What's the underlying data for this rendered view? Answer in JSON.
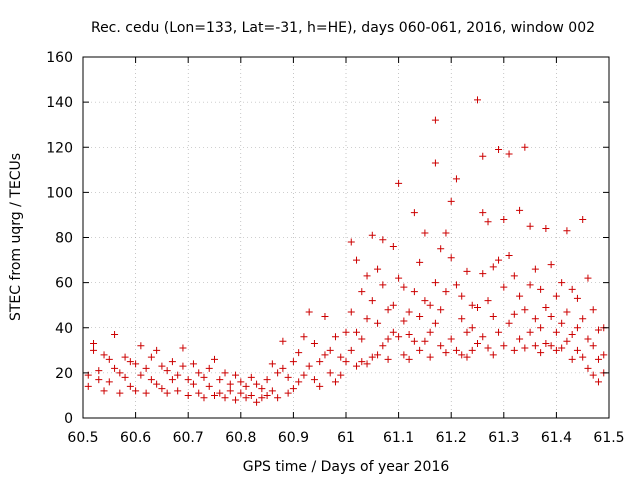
{
  "chart_data": {
    "type": "scatter",
    "title": "Rec. cedu (Lon=133, Lat=-31, h=HE), days 060-061, 2016, window 002",
    "xlabel": "GPS time / Days of year 2016",
    "ylabel": "STEC from uqrg / TECUs",
    "xlim": [
      60.5,
      61.5
    ],
    "ylim": [
      0,
      160
    ],
    "xticks": [
      60.5,
      60.6,
      60.7,
      60.8,
      60.9,
      61,
      61.1,
      61.2,
      61.3,
      61.4,
      61.5
    ],
    "xtick_labels": [
      "60.5",
      "60.6",
      "60.7",
      "60.8",
      "60.9",
      "61",
      "61.1",
      "61.2",
      "61.3",
      "61.4",
      "61.5"
    ],
    "yticks": [
      0,
      20,
      40,
      60,
      80,
      100,
      120,
      140,
      160
    ],
    "ytick_labels": [
      "0",
      "20",
      "40",
      "60",
      "80",
      "100",
      "120",
      "140",
      "160"
    ],
    "grid": true,
    "marker": "+",
    "color": "#cc0000",
    "series": [
      {
        "name": "STEC",
        "points": [
          [
            60.51,
            19
          ],
          [
            60.51,
            14
          ],
          [
            60.52,
            33
          ],
          [
            60.52,
            30
          ],
          [
            60.53,
            21
          ],
          [
            60.53,
            17
          ],
          [
            60.54,
            28
          ],
          [
            60.54,
            12
          ],
          [
            60.55,
            26
          ],
          [
            60.55,
            16
          ],
          [
            60.56,
            37
          ],
          [
            60.56,
            22
          ],
          [
            60.57,
            20
          ],
          [
            60.57,
            11
          ],
          [
            60.58,
            27
          ],
          [
            60.58,
            18
          ],
          [
            60.59,
            25
          ],
          [
            60.59,
            14
          ],
          [
            60.6,
            24
          ],
          [
            60.6,
            12
          ],
          [
            60.61,
            32
          ],
          [
            60.61,
            19
          ],
          [
            60.62,
            22
          ],
          [
            60.62,
            11
          ],
          [
            60.63,
            27
          ],
          [
            60.63,
            17
          ],
          [
            60.64,
            30
          ],
          [
            60.64,
            15
          ],
          [
            60.65,
            23
          ],
          [
            60.65,
            13
          ],
          [
            60.66,
            21
          ],
          [
            60.66,
            11
          ],
          [
            60.67,
            25
          ],
          [
            60.67,
            17
          ],
          [
            60.68,
            19
          ],
          [
            60.68,
            12
          ],
          [
            60.69,
            31
          ],
          [
            60.69,
            23
          ],
          [
            60.7,
            17
          ],
          [
            60.7,
            10
          ],
          [
            60.71,
            24
          ],
          [
            60.71,
            15
          ],
          [
            60.72,
            20
          ],
          [
            60.72,
            11
          ],
          [
            60.73,
            18
          ],
          [
            60.73,
            9
          ],
          [
            60.74,
            22
          ],
          [
            60.74,
            14
          ],
          [
            60.75,
            26
          ],
          [
            60.75,
            10
          ],
          [
            60.76,
            17
          ],
          [
            60.76,
            11
          ],
          [
            60.77,
            20
          ],
          [
            60.77,
            9
          ],
          [
            60.78,
            15
          ],
          [
            60.78,
            12
          ],
          [
            60.79,
            19
          ],
          [
            60.79,
            8
          ],
          [
            60.8,
            16
          ],
          [
            60.8,
            11
          ],
          [
            60.81,
            14
          ],
          [
            60.81,
            9
          ],
          [
            60.82,
            18
          ],
          [
            60.82,
            10
          ],
          [
            60.83,
            15
          ],
          [
            60.83,
            7
          ],
          [
            60.84,
            13
          ],
          [
            60.84,
            9
          ],
          [
            60.85,
            17
          ],
          [
            60.85,
            10
          ],
          [
            60.86,
            24
          ],
          [
            60.86,
            12
          ],
          [
            60.87,
            20
          ],
          [
            60.87,
            9
          ],
          [
            60.88,
            34
          ],
          [
            60.88,
            22
          ],
          [
            60.89,
            18
          ],
          [
            60.89,
            11
          ],
          [
            60.9,
            25
          ],
          [
            60.9,
            13
          ],
          [
            60.91,
            29
          ],
          [
            60.91,
            16
          ],
          [
            60.92,
            36
          ],
          [
            60.92,
            19
          ],
          [
            60.93,
            47
          ],
          [
            60.93,
            23
          ],
          [
            60.94,
            33
          ],
          [
            60.94,
            17
          ],
          [
            60.95,
            25
          ],
          [
            60.95,
            14
          ],
          [
            60.96,
            45
          ],
          [
            60.96,
            28
          ],
          [
            60.97,
            30
          ],
          [
            60.97,
            20
          ],
          [
            60.98,
            36
          ],
          [
            60.98,
            16
          ],
          [
            60.99,
            27
          ],
          [
            60.99,
            19
          ],
          [
            61.0,
            38
          ],
          [
            61.0,
            25
          ],
          [
            61.01,
            78
          ],
          [
            61.01,
            47
          ],
          [
            61.01,
            30
          ],
          [
            61.02,
            70
          ],
          [
            61.02,
            38
          ],
          [
            61.02,
            23
          ],
          [
            61.03,
            56
          ],
          [
            61.03,
            35
          ],
          [
            61.03,
            25
          ],
          [
            61.04,
            63
          ],
          [
            61.04,
            44
          ],
          [
            61.04,
            24
          ],
          [
            61.05,
            81
          ],
          [
            61.05,
            52
          ],
          [
            61.05,
            27
          ],
          [
            61.06,
            66
          ],
          [
            61.06,
            42
          ],
          [
            61.06,
            28
          ],
          [
            61.07,
            79
          ],
          [
            61.07,
            59
          ],
          [
            61.07,
            32
          ],
          [
            61.08,
            48
          ],
          [
            61.08,
            35
          ],
          [
            61.08,
            26
          ],
          [
            61.09,
            76
          ],
          [
            61.09,
            50
          ],
          [
            61.09,
            38
          ],
          [
            61.1,
            104
          ],
          [
            61.1,
            62
          ],
          [
            61.1,
            36
          ],
          [
            61.11,
            58
          ],
          [
            61.11,
            43
          ],
          [
            61.11,
            28
          ],
          [
            61.12,
            47
          ],
          [
            61.12,
            37
          ],
          [
            61.12,
            26
          ],
          [
            61.13,
            91
          ],
          [
            61.13,
            56
          ],
          [
            61.13,
            34
          ],
          [
            61.14,
            69
          ],
          [
            61.14,
            45
          ],
          [
            61.14,
            30
          ],
          [
            61.15,
            82
          ],
          [
            61.15,
            52
          ],
          [
            61.15,
            34
          ],
          [
            61.16,
            50
          ],
          [
            61.16,
            38
          ],
          [
            61.16,
            27
          ],
          [
            61.17,
            132
          ],
          [
            61.17,
            113
          ],
          [
            61.17,
            60
          ],
          [
            61.17,
            42
          ],
          [
            61.18,
            75
          ],
          [
            61.18,
            48
          ],
          [
            61.18,
            32
          ],
          [
            61.19,
            82
          ],
          [
            61.19,
            56
          ],
          [
            61.19,
            29
          ],
          [
            61.2,
            96
          ],
          [
            61.2,
            71
          ],
          [
            61.2,
            35
          ],
          [
            61.21,
            106
          ],
          [
            61.21,
            59
          ],
          [
            61.21,
            30
          ],
          [
            61.22,
            54
          ],
          [
            61.22,
            44
          ],
          [
            61.22,
            28
          ],
          [
            61.23,
            65
          ],
          [
            61.23,
            38
          ],
          [
            61.23,
            27
          ],
          [
            61.24,
            50
          ],
          [
            61.24,
            40
          ],
          [
            61.24,
            30
          ],
          [
            61.25,
            141
          ],
          [
            61.25,
            49
          ],
          [
            61.25,
            33
          ],
          [
            61.26,
            116
          ],
          [
            61.26,
            91
          ],
          [
            61.26,
            64
          ],
          [
            61.26,
            36
          ],
          [
            61.27,
            87
          ],
          [
            61.27,
            52
          ],
          [
            61.27,
            31
          ],
          [
            61.28,
            67
          ],
          [
            61.28,
            45
          ],
          [
            61.28,
            28
          ],
          [
            61.29,
            119
          ],
          [
            61.29,
            70
          ],
          [
            61.29,
            38
          ],
          [
            61.3,
            88
          ],
          [
            61.3,
            58
          ],
          [
            61.3,
            32
          ],
          [
            61.31,
            117
          ],
          [
            61.31,
            72
          ],
          [
            61.31,
            42
          ],
          [
            61.32,
            63
          ],
          [
            61.32,
            46
          ],
          [
            61.32,
            30
          ],
          [
            61.33,
            92
          ],
          [
            61.33,
            54
          ],
          [
            61.33,
            35
          ],
          [
            61.34,
            120
          ],
          [
            61.34,
            48
          ],
          [
            61.34,
            31
          ],
          [
            61.35,
            85
          ],
          [
            61.35,
            59
          ],
          [
            61.35,
            38
          ],
          [
            61.36,
            66
          ],
          [
            61.36,
            44
          ],
          [
            61.36,
            32
          ],
          [
            61.37,
            57
          ],
          [
            61.37,
            40
          ],
          [
            61.37,
            29
          ],
          [
            61.38,
            84
          ],
          [
            61.38,
            49
          ],
          [
            61.38,
            33
          ],
          [
            61.39,
            68
          ],
          [
            61.39,
            45
          ],
          [
            61.39,
            32
          ],
          [
            61.4,
            54
          ],
          [
            61.4,
            38
          ],
          [
            61.4,
            30
          ],
          [
            61.41,
            60
          ],
          [
            61.41,
            42
          ],
          [
            61.41,
            31
          ],
          [
            61.42,
            83
          ],
          [
            61.42,
            47
          ],
          [
            61.42,
            34
          ],
          [
            61.43,
            57
          ],
          [
            61.43,
            37
          ],
          [
            61.43,
            26
          ],
          [
            61.44,
            53
          ],
          [
            61.44,
            40
          ],
          [
            61.44,
            30
          ],
          [
            61.45,
            88
          ],
          [
            61.45,
            44
          ],
          [
            61.45,
            27
          ],
          [
            61.46,
            62
          ],
          [
            61.46,
            35
          ],
          [
            61.46,
            22
          ],
          [
            61.47,
            48
          ],
          [
            61.47,
            32
          ],
          [
            61.47,
            19
          ],
          [
            61.48,
            39
          ],
          [
            61.48,
            26
          ],
          [
            61.48,
            16
          ],
          [
            61.49,
            40
          ],
          [
            61.49,
            28
          ],
          [
            61.49,
            20
          ]
        ]
      }
    ]
  }
}
